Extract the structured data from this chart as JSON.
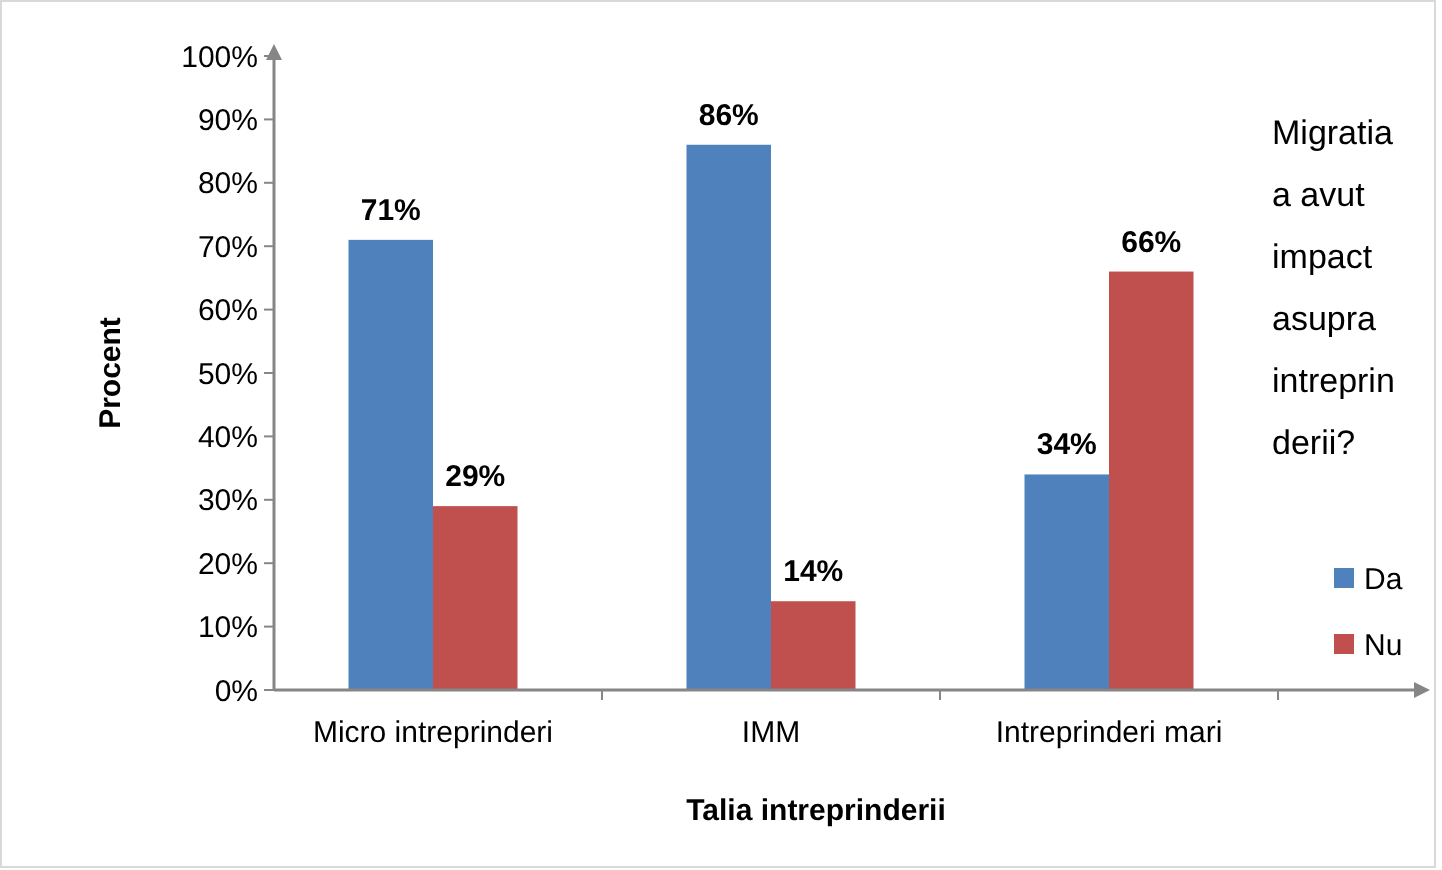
{
  "chart_data": {
    "type": "bar",
    "xlabel": "Talia intreprinderii",
    "ylabel": "Procent",
    "legend_title": "Migratia a avut impact asupra intreprinderii?",
    "categories": [
      "Micro intreprinderi",
      "IMM",
      "Intreprinderi mari"
    ],
    "series": [
      {
        "name": "Da",
        "color": "#4f81bd",
        "values": [
          71,
          86,
          34
        ],
        "value_labels": [
          "71%",
          "86%",
          "34%"
        ]
      },
      {
        "name": "Nu",
        "color": "#c0504d",
        "values": [
          29,
          14,
          66
        ],
        "value_labels": [
          "29%",
          "14%",
          "66%"
        ]
      }
    ],
    "ylim": [
      0,
      100
    ],
    "yticks": [
      {
        "value": 0,
        "label": "0%"
      },
      {
        "value": 10,
        "label": "10%"
      },
      {
        "value": 20,
        "label": "20%"
      },
      {
        "value": 30,
        "label": "30%"
      },
      {
        "value": 40,
        "label": "40%"
      },
      {
        "value": 50,
        "label": "50%"
      },
      {
        "value": 60,
        "label": "60%"
      },
      {
        "value": 70,
        "label": "70%"
      },
      {
        "value": 80,
        "label": "80%"
      },
      {
        "value": 90,
        "label": "90%"
      },
      {
        "value": 100,
        "label": "100%"
      }
    ],
    "legend": "right"
  }
}
